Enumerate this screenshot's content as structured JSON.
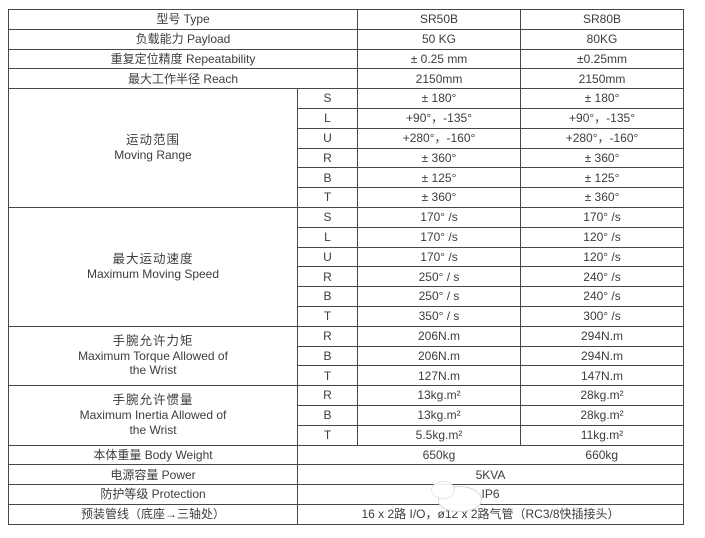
{
  "colors": {
    "border": "#474747",
    "text": "#3d3d3d",
    "background": "#ffffff"
  },
  "table": {
    "type_row": {
      "label": "型号 Type",
      "sr50": "SR50B",
      "sr80": "SR80B"
    },
    "payload_row": {
      "label": "负载能力 Payload",
      "sr50": "50 KG",
      "sr80": "80KG"
    },
    "repeatability_row": {
      "label": "重复定位精度 Repeatability",
      "sr50": "± 0.25 mm",
      "sr80": "±0.25mm"
    },
    "reach_row": {
      "label": "最大工作半径 Reach",
      "sr50": "2150mm",
      "sr80": "2150mm"
    },
    "moving_range": {
      "label_zh": "运动范围",
      "label_en": "Moving Range",
      "rows": [
        {
          "axis": "S",
          "sr50": "± 180°",
          "sr80": "± 180°"
        },
        {
          "axis": "L",
          "sr50": "+90°，-135°",
          "sr80": "+90°，-135°"
        },
        {
          "axis": "U",
          "sr50": "+280°，-160°",
          "sr80": "+280°，-160°"
        },
        {
          "axis": "R",
          "sr50": "± 360°",
          "sr80": "± 360°"
        },
        {
          "axis": "B",
          "sr50": "± 125°",
          "sr80": "± 125°"
        },
        {
          "axis": "T",
          "sr50": "± 360°",
          "sr80": "± 360°"
        }
      ]
    },
    "max_speed": {
      "label_zh": "最大运动速度",
      "label_en": "Maximum Moving Speed",
      "rows": [
        {
          "axis": "S",
          "sr50": "170° /s",
          "sr80": "170° /s"
        },
        {
          "axis": "L",
          "sr50": "170° /s",
          "sr80": "120° /s"
        },
        {
          "axis": "U",
          "sr50": "170° /s",
          "sr80": "120° /s"
        },
        {
          "axis": "R",
          "sr50": "250° / s",
          "sr80": "240° /s"
        },
        {
          "axis": "B",
          "sr50": "250° / s",
          "sr80": "240° /s"
        },
        {
          "axis": "T",
          "sr50": "350° / s",
          "sr80": "300° /s"
        }
      ]
    },
    "max_torque": {
      "label_zh": "手腕允许力矩",
      "label_en1": "Maximum Torque Allowed of",
      "label_en2": "the Wrist",
      "rows": [
        {
          "axis": "R",
          "sr50": "206N.m",
          "sr80": "294N.m"
        },
        {
          "axis": "B",
          "sr50": "206N.m",
          "sr80": "294N.m"
        },
        {
          "axis": "T",
          "sr50": "127N.m",
          "sr80": "147N.m"
        }
      ]
    },
    "max_inertia": {
      "label_zh": "手腕允许惯量",
      "label_en1": "Maximum Inertia Allowed of",
      "label_en2": "the Wrist",
      "rows": [
        {
          "axis": "R",
          "sr50": "13kg.m²",
          "sr80": "28kg.m²"
        },
        {
          "axis": "B",
          "sr50": "13kg.m²",
          "sr80": "28kg.m²"
        },
        {
          "axis": "T",
          "sr50": "5.5kg.m²",
          "sr80": "11kg.m²"
        }
      ]
    },
    "body_weight_row": {
      "label": "本体重量 Body Weight",
      "sr50": "650kg",
      "sr80": "660kg"
    },
    "power_row": {
      "label": "电源容量 Power",
      "value": "5KVA"
    },
    "protection_row": {
      "label": "防护等级 Protection",
      "value": "IP6"
    },
    "piping_row": {
      "label": "预装管线（底座→三轴处）",
      "value": "16 x 2路 I/O，ø12 x 2路气管（RC3/8快插接头）"
    }
  }
}
